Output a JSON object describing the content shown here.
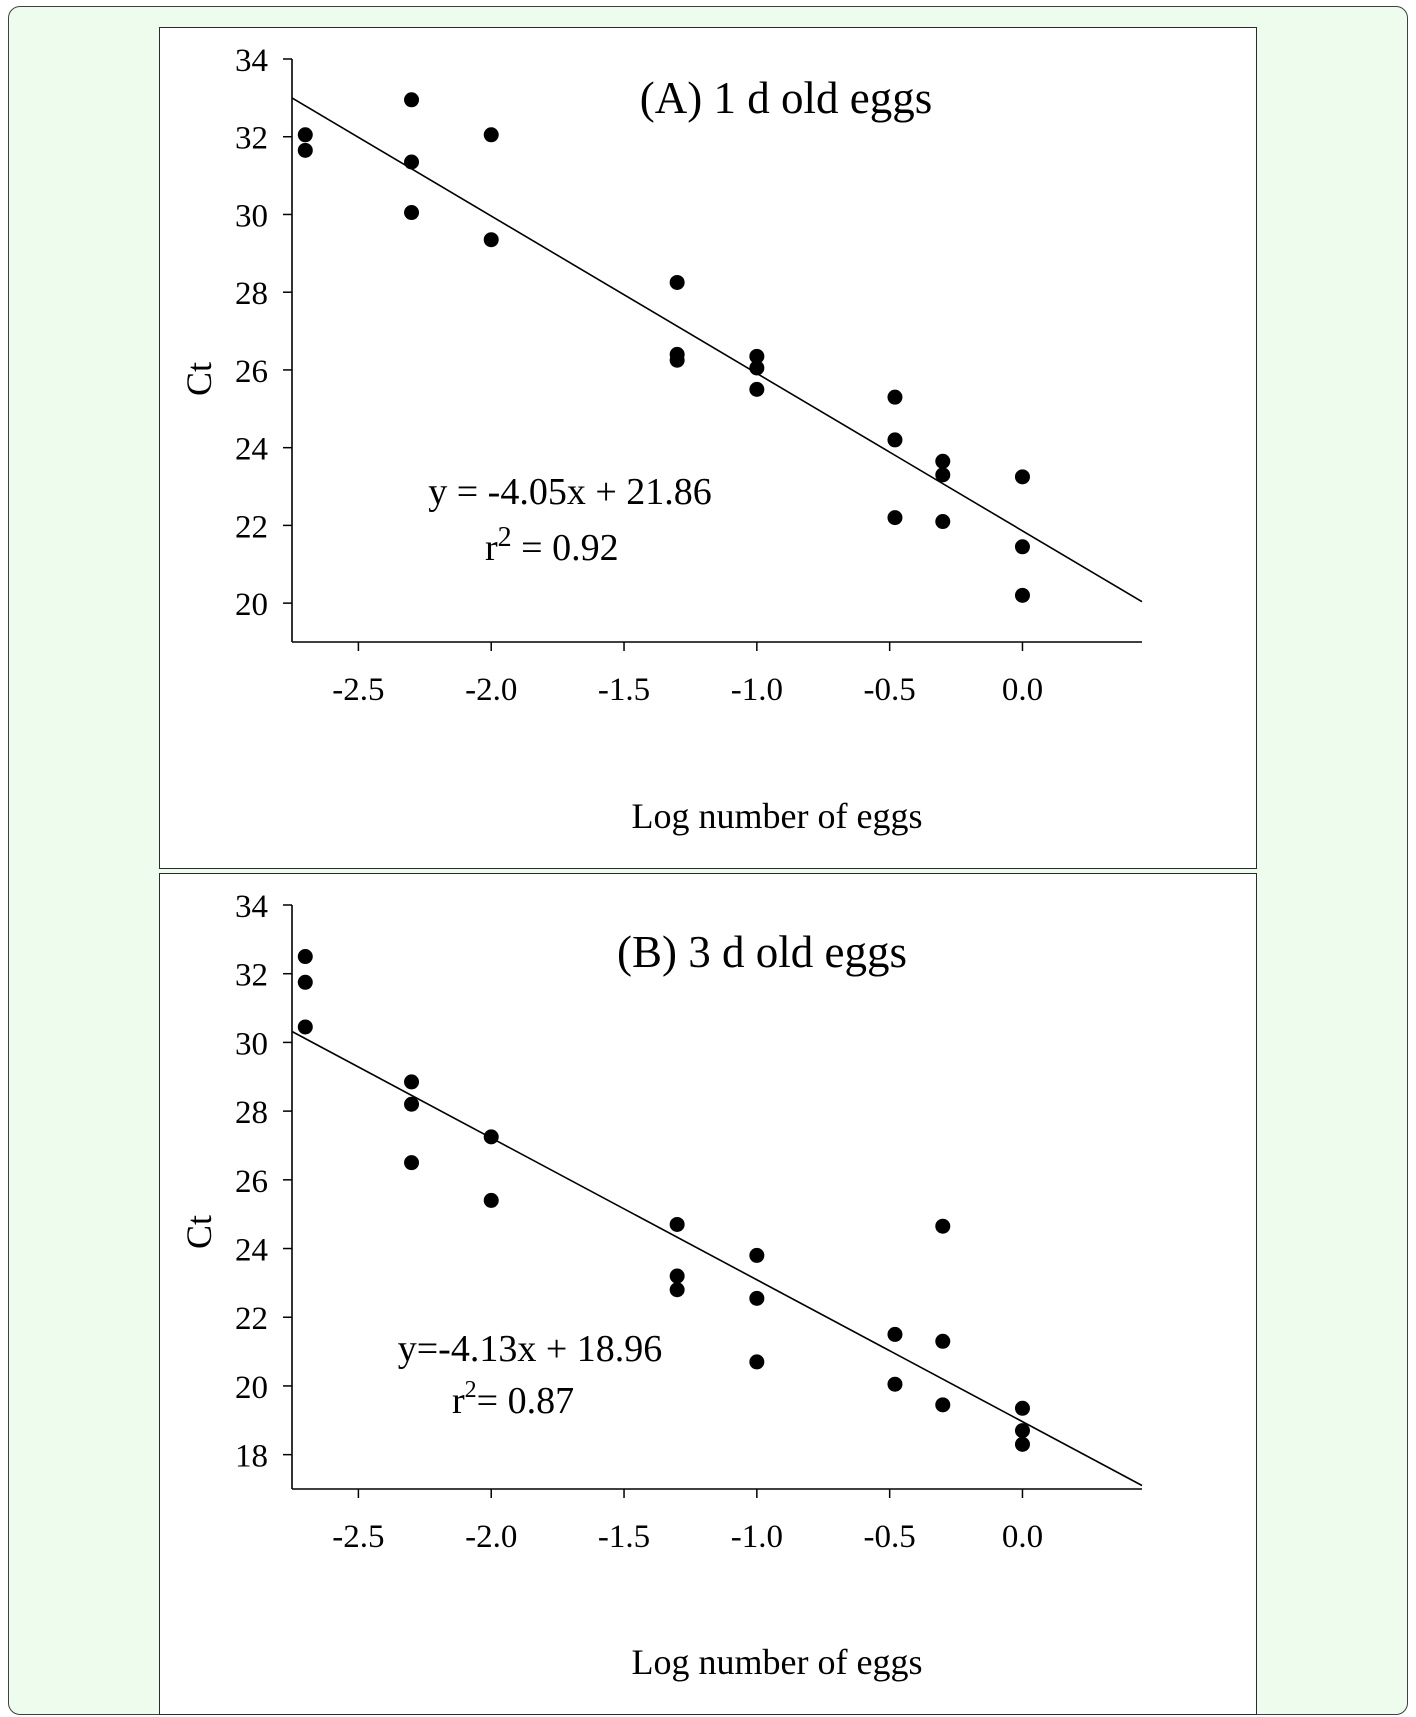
{
  "colors": {
    "background": "#eefcee",
    "border": "#3f3f3f",
    "points": "#000000",
    "line": "#000000"
  },
  "chart_data": [
    {
      "type": "scatter",
      "title": "(A) 1 d old eggs",
      "xlabel": "Log number of eggs",
      "ylabel": "Ct",
      "xlim": [
        -2.75,
        0.45
      ],
      "ylim": [
        19,
        34
      ],
      "xticks": [
        "-2.5",
        "-2.0",
        "-1.5",
        "-1.0",
        "-0.5",
        "0.0"
      ],
      "yticks": [
        "20",
        "22",
        "24",
        "26",
        "28",
        "30",
        "32",
        "34"
      ],
      "grid": false,
      "equation": "y = -4.05x + 21.86",
      "r2_label": "r",
      "r2_sup": "2",
      "r2_value": " = 0.92",
      "fit": {
        "slope": -4.05,
        "intercept": 21.86
      },
      "points": [
        {
          "x": -2.7,
          "y": 32.05
        },
        {
          "x": -2.7,
          "y": 31.65
        },
        {
          "x": -2.3,
          "y": 32.95
        },
        {
          "x": -2.3,
          "y": 31.35
        },
        {
          "x": -2.3,
          "y": 30.05
        },
        {
          "x": -2.0,
          "y": 32.05
        },
        {
          "x": -2.0,
          "y": 29.35
        },
        {
          "x": -1.3,
          "y": 28.25
        },
        {
          "x": -1.3,
          "y": 26.4
        },
        {
          "x": -1.3,
          "y": 26.25
        },
        {
          "x": -1.0,
          "y": 26.35
        },
        {
          "x": -1.0,
          "y": 26.05
        },
        {
          "x": -1.0,
          "y": 25.5
        },
        {
          "x": -0.48,
          "y": 25.3
        },
        {
          "x": -0.48,
          "y": 24.2
        },
        {
          "x": -0.48,
          "y": 22.2
        },
        {
          "x": -0.3,
          "y": 23.65
        },
        {
          "x": -0.3,
          "y": 23.3
        },
        {
          "x": -0.3,
          "y": 22.1
        },
        {
          "x": 0.0,
          "y": 23.25
        },
        {
          "x": 0.0,
          "y": 21.45
        },
        {
          "x": 0.0,
          "y": 20.2
        }
      ]
    },
    {
      "type": "scatter",
      "title": "(B) 3 d old eggs",
      "xlabel": "Log number of eggs",
      "ylabel": "Ct",
      "xlim": [
        -2.75,
        0.45
      ],
      "ylim": [
        17,
        34
      ],
      "xticks": [
        "-2.5",
        "-2.0",
        "-1.5",
        "-1.0",
        "-0.5",
        "0.0"
      ],
      "yticks": [
        "18",
        "20",
        "22",
        "24",
        "26",
        "28",
        "30",
        "32",
        "34"
      ],
      "grid": false,
      "equation": "y=-4.13x + 18.96",
      "r2_label": "r",
      "r2_sup": "2",
      "r2_value": "= 0.87",
      "fit": {
        "slope": -4.13,
        "intercept": 18.96
      },
      "points": [
        {
          "x": -2.7,
          "y": 32.5
        },
        {
          "x": -2.7,
          "y": 31.75
        },
        {
          "x": -2.7,
          "y": 30.45
        },
        {
          "x": -2.3,
          "y": 28.85
        },
        {
          "x": -2.3,
          "y": 28.2
        },
        {
          "x": -2.3,
          "y": 26.5
        },
        {
          "x": -2.0,
          "y": 27.25
        },
        {
          "x": -2.0,
          "y": 25.4
        },
        {
          "x": -1.3,
          "y": 24.7
        },
        {
          "x": -1.3,
          "y": 23.2
        },
        {
          "x": -1.3,
          "y": 22.8
        },
        {
          "x": -1.0,
          "y": 23.8
        },
        {
          "x": -1.0,
          "y": 22.55
        },
        {
          "x": -1.0,
          "y": 20.7
        },
        {
          "x": -0.48,
          "y": 21.5
        },
        {
          "x": -0.48,
          "y": 20.05
        },
        {
          "x": -0.3,
          "y": 24.65
        },
        {
          "x": -0.3,
          "y": 21.3
        },
        {
          "x": -0.3,
          "y": 19.45
        },
        {
          "x": 0.0,
          "y": 19.35
        },
        {
          "x": 0.0,
          "y": 18.7
        },
        {
          "x": 0.0,
          "y": 18.3
        }
      ]
    }
  ]
}
